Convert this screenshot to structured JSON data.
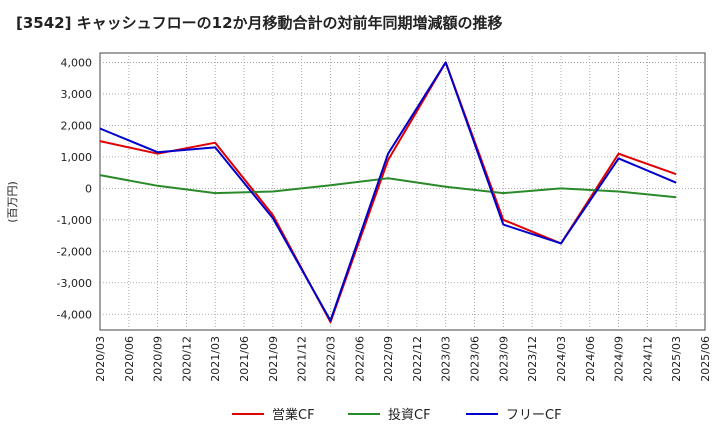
{
  "chart_data": {
    "type": "line",
    "title": "[3542]  キャッシュフローの12か月移動合計の対前年同期増減額の推移",
    "ylabel": "(百万円)",
    "xlabel": "",
    "ylim": [
      -4500,
      4300
    ],
    "yticks": [
      4000,
      3000,
      2000,
      1000,
      0,
      -1000,
      -2000,
      -3000,
      -4000
    ],
    "ytick_labels": [
      "4,000",
      "3,000",
      "2,000",
      "1,000",
      "0",
      "-1,000",
      "-2,000",
      "-3,000",
      "-4,000"
    ],
    "x": [
      "2020/03",
      "2020/06",
      "2020/09",
      "2020/12",
      "2021/03",
      "2021/06",
      "2021/09",
      "2021/12",
      "2022/03",
      "2022/06",
      "2022/09",
      "2022/12",
      "2023/03",
      "2023/06",
      "2023/09",
      "2023/12",
      "2024/03",
      "2024/06",
      "2024/09",
      "2024/12",
      "2025/03",
      "2025/06"
    ],
    "grid": true,
    "legend_position": "bottom",
    "series": [
      {
        "name": "営業CF",
        "color": "#e00000",
        "values": [
          1500,
          null,
          1100,
          null,
          1450,
          null,
          -850,
          null,
          -4250,
          null,
          900,
          null,
          4000,
          null,
          -1000,
          null,
          -1750,
          null,
          1100,
          null,
          450,
          null
        ]
      },
      {
        "name": "投資CF",
        "color": "#2a8a2a",
        "values": [
          420,
          null,
          80,
          null,
          -150,
          null,
          -100,
          null,
          100,
          null,
          320,
          null,
          50,
          null,
          -150,
          null,
          0,
          null,
          -100,
          null,
          -280,
          null
        ]
      },
      {
        "name": "フリーCF",
        "color": "#0000cc",
        "values": [
          1900,
          null,
          1150,
          null,
          1300,
          null,
          -950,
          null,
          -4200,
          null,
          1100,
          null,
          4000,
          null,
          -1150,
          null,
          -1750,
          null,
          950,
          null,
          180,
          null
        ]
      }
    ]
  }
}
